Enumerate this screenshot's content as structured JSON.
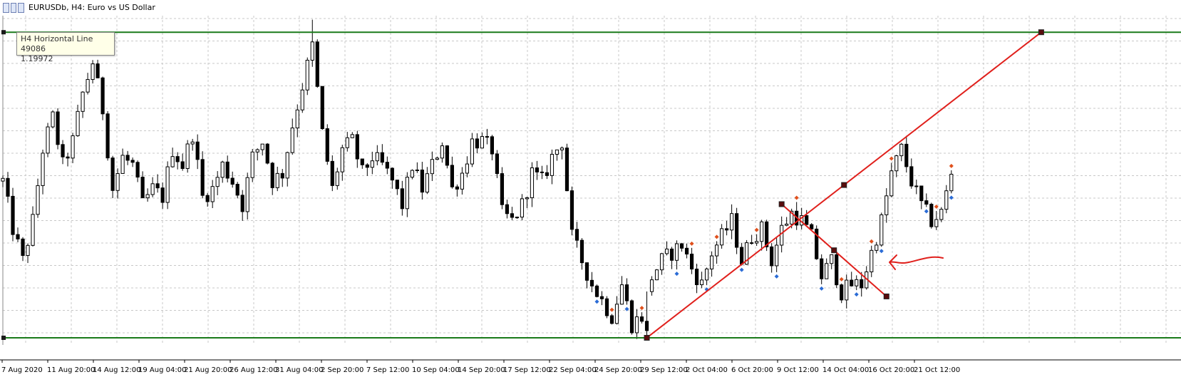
{
  "window": {
    "title": "EURUSDb, H4:  Euro vs US Dollar",
    "icon": "chart-window-icon"
  },
  "tooltip": {
    "line1": "H4 Horizontal Line 49086",
    "line2": "1.19972"
  },
  "colors": {
    "background": "#ffffff",
    "grid": "#c8c8c8",
    "candle": "#000000",
    "horizontal_line": "#1a7a1a",
    "trend_line": "#e0201c",
    "marker_up": "#2b6cd6",
    "marker_down": "#e0501c",
    "annotation_arrow": "#e0201c"
  },
  "chart_data": {
    "type": "candlestick",
    "symbol": "EURUSDb",
    "timeframe": "H4",
    "description": "Euro vs US Dollar",
    "x_tick_labels": [
      "7 Aug 2020",
      "11 Aug 20:00",
      "14 Aug 12:00",
      "19 Aug 04:00",
      "21 Aug 20:00",
      "26 Aug 12:00",
      "31 Aug 04:00",
      "2 Sep 20:00",
      "7 Sep 12:00",
      "10 Sep 04:00",
      "14 Sep 20:00",
      "17 Sep 12:00",
      "22 Sep 04:00",
      "24 Sep 20:00",
      "29 Sep 12:00",
      "2 Oct 04:00",
      "6 Oct 20:00",
      "9 Oct 12:00",
      "14 Oct 04:00",
      "16 Oct 20:00",
      "21 Oct 12:00"
    ],
    "close_path": [
      [
        0,
        1.181
      ],
      [
        1,
        1.175
      ],
      [
        2,
        1.171
      ],
      [
        3,
        1.176
      ],
      [
        4,
        1.185
      ],
      [
        5,
        1.189
      ],
      [
        6,
        1.183
      ],
      [
        7,
        1.186
      ],
      [
        8,
        1.192
      ],
      [
        9,
        1.196
      ],
      [
        10,
        1.19
      ],
      [
        11,
        1.18
      ],
      [
        12,
        1.184
      ],
      [
        13,
        1.183
      ],
      [
        14,
        1.178
      ],
      [
        15,
        1.18
      ],
      [
        16,
        1.179
      ],
      [
        17,
        1.185
      ],
      [
        18,
        1.183
      ],
      [
        19,
        1.187
      ],
      [
        20,
        1.179
      ],
      [
        21,
        1.18
      ],
      [
        22,
        1.183
      ],
      [
        23,
        1.181
      ],
      [
        24,
        1.178
      ],
      [
        25,
        1.184
      ],
      [
        26,
        1.186
      ],
      [
        27,
        1.181
      ],
      [
        28,
        1.182
      ],
      [
        29,
        1.188
      ],
      [
        30,
        1.193
      ],
      [
        31,
        1.198
      ],
      [
        32,
        1.187
      ],
      [
        33,
        1.18
      ],
      [
        34,
        1.185
      ],
      [
        35,
        1.186
      ],
      [
        36,
        1.182
      ],
      [
        37,
        1.184
      ],
      [
        38,
        1.183
      ],
      [
        39,
        1.181
      ],
      [
        40,
        1.178
      ],
      [
        41,
        1.183
      ],
      [
        42,
        1.18
      ],
      [
        43,
        1.183
      ],
      [
        44,
        1.186
      ],
      [
        45,
        1.18
      ],
      [
        46,
        1.182
      ],
      [
        47,
        1.186
      ],
      [
        48,
        1.186
      ],
      [
        49,
        1.185
      ],
      [
        50,
        1.177
      ],
      [
        51,
        1.176
      ],
      [
        52,
        1.178
      ],
      [
        53,
        1.182
      ],
      [
        54,
        1.181
      ],
      [
        55,
        1.184
      ],
      [
        56,
        1.186
      ],
      [
        57,
        1.174
      ],
      [
        58,
        1.171
      ],
      [
        59,
        1.168
      ],
      [
        60,
        1.166
      ],
      [
        61,
        1.164
      ],
      [
        62,
        1.168
      ],
      [
        63,
        1.163
      ],
      [
        64,
        1.164
      ],
      [
        65,
        1.169
      ],
      [
        66,
        1.171
      ],
      [
        67,
        1.172
      ],
      [
        68,
        1.173
      ],
      [
        69,
        1.17
      ],
      [
        70,
        1.168
      ],
      [
        71,
        1.172
      ],
      [
        72,
        1.174
      ],
      [
        73,
        1.176
      ],
      [
        74,
        1.171
      ],
      [
        75,
        1.174
      ],
      [
        76,
        1.175
      ],
      [
        77,
        1.171
      ],
      [
        78,
        1.175
      ],
      [
        79,
        1.177
      ],
      [
        80,
        1.176
      ],
      [
        81,
        1.174
      ],
      [
        82,
        1.169
      ],
      [
        83,
        1.171
      ],
      [
        84,
        1.167
      ],
      [
        85,
        1.168
      ],
      [
        86,
        1.168
      ],
      [
        87,
        1.172
      ],
      [
        88,
        1.176
      ],
      [
        89,
        1.182
      ],
      [
        90,
        1.185
      ],
      [
        91,
        1.181
      ],
      [
        92,
        1.178
      ],
      [
        93,
        1.176
      ],
      [
        94,
        1.177
      ],
      [
        95,
        1.182
      ]
    ],
    "horizontal_lines": [
      {
        "name": "H4 Horizontal Line 49086",
        "price": 1.19972
      },
      {
        "name": "",
        "price": 1.1613
      }
    ],
    "trend_lines": [
      {
        "from": [
          64.5,
          1.1613
        ],
        "to": [
          104,
          1.19972
        ]
      },
      {
        "from": [
          78,
          1.1781
        ],
        "to": [
          88.5,
          1.1665
        ]
      }
    ],
    "x_range": [
      0,
      118
    ],
    "y_range": [
      1.1604,
      1.2018
    ],
    "grid": true
  }
}
